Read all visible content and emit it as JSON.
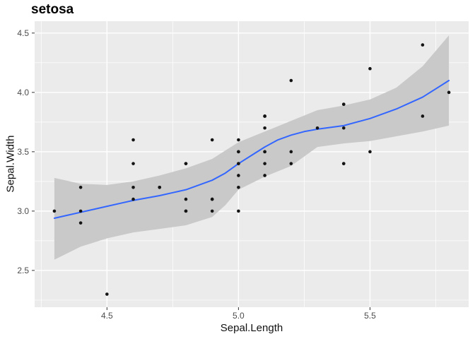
{
  "chart_data": {
    "type": "scatter",
    "title": "setosa",
    "xlabel": "Sepal.Length",
    "ylabel": "Sepal.Width",
    "xlim": [
      4.225,
      5.875
    ],
    "ylim": [
      2.19,
      4.6
    ],
    "grid": true,
    "legend": "none",
    "x_ticks": [
      {
        "v": 4.5,
        "label": "4.5"
      },
      {
        "v": 5.0,
        "label": "5.0"
      },
      {
        "v": 5.5,
        "label": "5.5"
      }
    ],
    "y_ticks": [
      {
        "v": 2.5,
        "label": "2.5"
      },
      {
        "v": 3.0,
        "label": "3.0"
      },
      {
        "v": 3.5,
        "label": "3.5"
      },
      {
        "v": 4.0,
        "label": "4.0"
      },
      {
        "v": 4.5,
        "label": "4.5"
      }
    ],
    "x_minor": [
      4.25,
      4.75,
      5.25,
      5.75
    ],
    "y_minor": [
      2.25,
      2.75,
      3.25,
      3.75,
      4.25
    ],
    "points": [
      [
        5.1,
        3.5
      ],
      [
        4.9,
        3.0
      ],
      [
        4.7,
        3.2
      ],
      [
        4.6,
        3.1
      ],
      [
        5.0,
        3.6
      ],
      [
        5.4,
        3.9
      ],
      [
        4.6,
        3.4
      ],
      [
        5.0,
        3.4
      ],
      [
        4.4,
        2.9
      ],
      [
        4.9,
        3.1
      ],
      [
        5.4,
        3.7
      ],
      [
        4.8,
        3.4
      ],
      [
        4.8,
        3.0
      ],
      [
        4.3,
        3.0
      ],
      [
        5.8,
        4.0
      ],
      [
        5.7,
        4.4
      ],
      [
        5.4,
        3.9
      ],
      [
        5.1,
        3.5
      ],
      [
        5.7,
        3.8
      ],
      [
        5.1,
        3.8
      ],
      [
        5.4,
        3.4
      ],
      [
        5.1,
        3.7
      ],
      [
        4.6,
        3.6
      ],
      [
        5.1,
        3.3
      ],
      [
        4.8,
        3.4
      ],
      [
        5.0,
        3.0
      ],
      [
        5.0,
        3.4
      ],
      [
        5.2,
        3.5
      ],
      [
        5.2,
        3.4
      ],
      [
        4.7,
        3.2
      ],
      [
        4.8,
        3.1
      ],
      [
        5.4,
        3.4
      ],
      [
        5.2,
        4.1
      ],
      [
        5.5,
        4.2
      ],
      [
        4.9,
        3.1
      ],
      [
        5.0,
        3.2
      ],
      [
        5.5,
        3.5
      ],
      [
        4.9,
        3.6
      ],
      [
        4.4,
        3.0
      ],
      [
        5.1,
        3.4
      ],
      [
        5.0,
        3.5
      ],
      [
        4.5,
        2.3
      ],
      [
        4.4,
        3.2
      ],
      [
        5.0,
        3.5
      ],
      [
        5.1,
        3.8
      ],
      [
        4.8,
        3.0
      ],
      [
        5.1,
        3.8
      ],
      [
        4.6,
        3.2
      ],
      [
        5.3,
        3.7
      ],
      [
        5.0,
        3.3
      ]
    ],
    "smooth_line": [
      [
        4.3,
        2.94
      ],
      [
        4.35,
        2.965
      ],
      [
        4.4,
        2.99
      ],
      [
        4.45,
        3.015
      ],
      [
        4.5,
        3.04
      ],
      [
        4.55,
        3.065
      ],
      [
        4.6,
        3.09
      ],
      [
        4.65,
        3.11
      ],
      [
        4.7,
        3.13
      ],
      [
        4.75,
        3.155
      ],
      [
        4.8,
        3.18
      ],
      [
        4.85,
        3.22
      ],
      [
        4.9,
        3.26
      ],
      [
        4.95,
        3.32
      ],
      [
        5.0,
        3.4
      ],
      [
        5.05,
        3.47
      ],
      [
        5.1,
        3.54
      ],
      [
        5.15,
        3.6
      ],
      [
        5.2,
        3.64
      ],
      [
        5.25,
        3.67
      ],
      [
        5.3,
        3.69
      ],
      [
        5.35,
        3.705
      ],
      [
        5.4,
        3.72
      ],
      [
        5.45,
        3.75
      ],
      [
        5.5,
        3.78
      ],
      [
        5.55,
        3.82
      ],
      [
        5.6,
        3.86
      ],
      [
        5.65,
        3.91
      ],
      [
        5.7,
        3.96
      ],
      [
        5.75,
        4.03
      ],
      [
        5.8,
        4.1
      ]
    ],
    "ribbon": {
      "x": [
        4.3,
        4.4,
        4.5,
        4.6,
        4.7,
        4.8,
        4.9,
        4.95,
        5.0,
        5.1,
        5.2,
        5.3,
        5.4,
        5.5,
        5.6,
        5.7,
        5.8
      ],
      "upper": [
        3.28,
        3.23,
        3.22,
        3.25,
        3.3,
        3.36,
        3.44,
        3.51,
        3.58,
        3.67,
        3.76,
        3.85,
        3.89,
        3.94,
        4.04,
        4.22,
        4.48
      ],
      "lower": [
        2.59,
        2.7,
        2.77,
        2.82,
        2.85,
        2.88,
        2.95,
        3.05,
        3.18,
        3.29,
        3.38,
        3.54,
        3.57,
        3.59,
        3.63,
        3.67,
        3.72
      ]
    },
    "colors": {
      "panel": "#EBEBEB",
      "grid": "#FFFFFF",
      "ribbon": "#C9C9C9",
      "line": "#3366FF",
      "point": "#141414",
      "tick_text": "#4D4D4D",
      "tick_mark": "#333333",
      "title_text": "#000000"
    }
  }
}
